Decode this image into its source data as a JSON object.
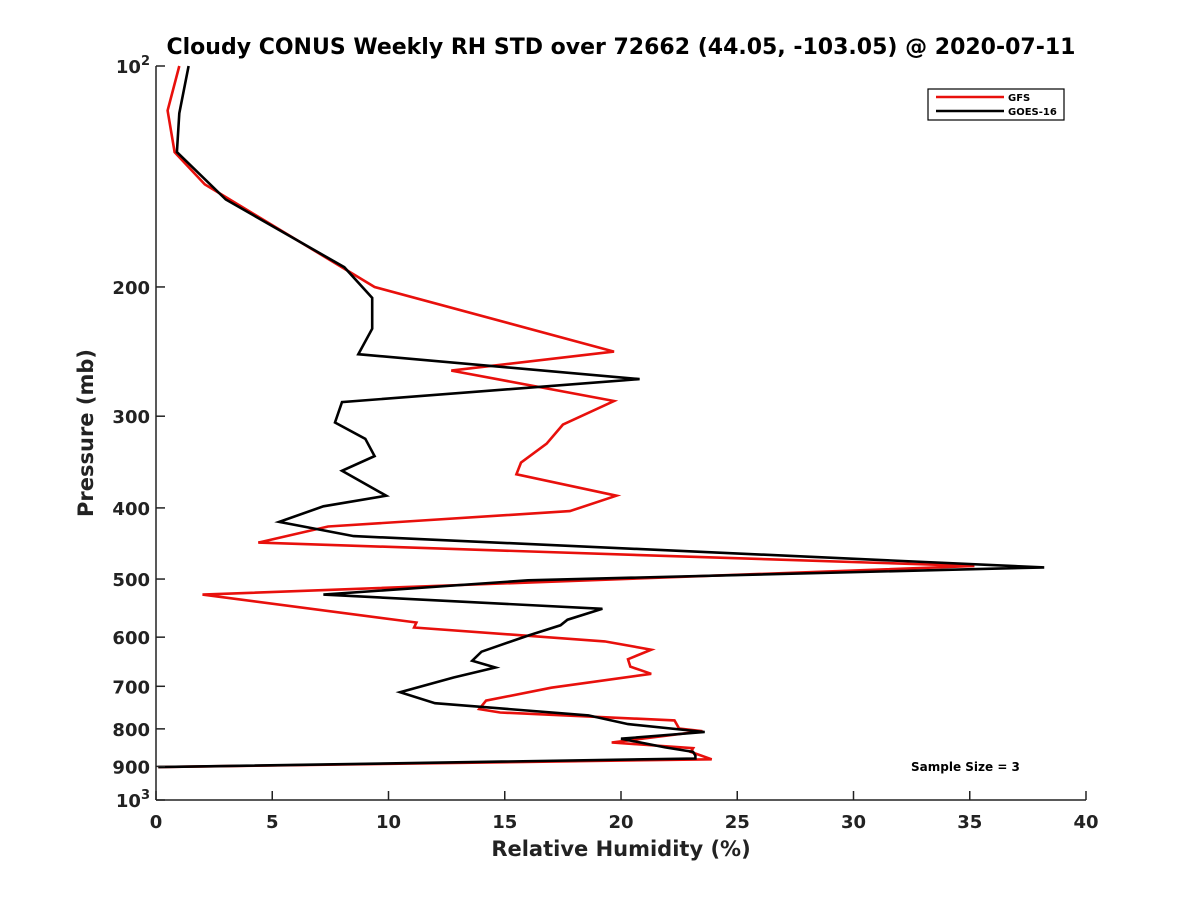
{
  "chart_data": {
    "type": "line",
    "title": "Cloudy CONUS Weekly RH STD over 72662 (44.05, -103.05) @ 2020-07-11",
    "xlabel": "Relative Humidity (%)",
    "ylabel": "Pressure (mb)",
    "xlim": [
      0,
      40
    ],
    "ylim": [
      100,
      1000
    ],
    "y_scale": "log",
    "y_reversed": true,
    "grid": false,
    "legend_position": "top-right",
    "x_ticks": [
      {
        "value": 0,
        "label": "0"
      },
      {
        "value": 5,
        "label": "5"
      },
      {
        "value": 10,
        "label": "10"
      },
      {
        "value": 15,
        "label": "15"
      },
      {
        "value": 20,
        "label": "20"
      },
      {
        "value": 25,
        "label": "25"
      },
      {
        "value": 30,
        "label": "30"
      },
      {
        "value": 35,
        "label": "35"
      },
      {
        "value": 40,
        "label": "40"
      }
    ],
    "y_ticks": [
      {
        "value": 100,
        "label": "10",
        "sup": "2"
      },
      {
        "value": 200,
        "label": "200",
        "sup": ""
      },
      {
        "value": 300,
        "label": "300",
        "sup": ""
      },
      {
        "value": 400,
        "label": "400",
        "sup": ""
      },
      {
        "value": 500,
        "label": "500",
        "sup": ""
      },
      {
        "value": 600,
        "label": "600",
        "sup": ""
      },
      {
        "value": 700,
        "label": "700",
        "sup": ""
      },
      {
        "value": 800,
        "label": "800",
        "sup": ""
      },
      {
        "value": 900,
        "label": "900",
        "sup": ""
      },
      {
        "value": 1000,
        "label": "10",
        "sup": "3"
      }
    ],
    "annotation": "Sample Size = 3",
    "series": [
      {
        "name": "GFS",
        "color": "#e8100c",
        "x": [
          1.0,
          0.5,
          0.8,
          2.1,
          9.4,
          19.7,
          12.7,
          19.7,
          17.5,
          16.8,
          15.7,
          15.5,
          19.8,
          17.8,
          7.4,
          4.4,
          35.2,
          2.0,
          11.2,
          11.1,
          19.3,
          21.3,
          20.3,
          20.4,
          21.3,
          17.0,
          14.2,
          13.9,
          14.8,
          22.3,
          22.5,
          23.5,
          19.6,
          23.1,
          23.0,
          23.9,
          0.1
        ],
        "y": [
          100,
          115,
          131,
          145,
          200,
          245,
          260,
          286,
          308,
          327,
          347,
          360,
          385,
          404,
          424,
          446,
          480,
          525,
          573,
          582,
          608,
          624,
          643,
          658,
          673,
          703,
          732,
          752,
          760,
          779,
          799,
          806,
          835,
          850,
          860,
          880,
          902
        ]
      },
      {
        "name": "GOES-16",
        "color": "#000000",
        "x": [
          1.4,
          1.0,
          0.9,
          3.0,
          8.1,
          9.3,
          9.3,
          8.7,
          20.8,
          8.0,
          7.7,
          9.0,
          9.4,
          8.0,
          9.9,
          7.2,
          5.3,
          8.5,
          38.2,
          16.0,
          7.2,
          19.2,
          17.7,
          17.4,
          16.0,
          14.0,
          13.6,
          14.6,
          12.8,
          10.5,
          12.0,
          18.6,
          20.3,
          23.6,
          20.0,
          21.9,
          23.1,
          23.2,
          23.2,
          0.1
        ],
        "y": [
          100,
          116,
          131,
          152,
          188,
          207,
          228,
          247,
          267,
          287,
          306,
          322,
          340,
          356,
          385,
          398,
          418,
          437,
          482,
          502,
          525,
          549,
          568,
          578,
          597,
          628,
          646,
          660,
          681,
          713,
          738,
          767,
          788,
          808,
          825,
          848,
          860,
          870,
          878,
          902
        ]
      }
    ]
  }
}
